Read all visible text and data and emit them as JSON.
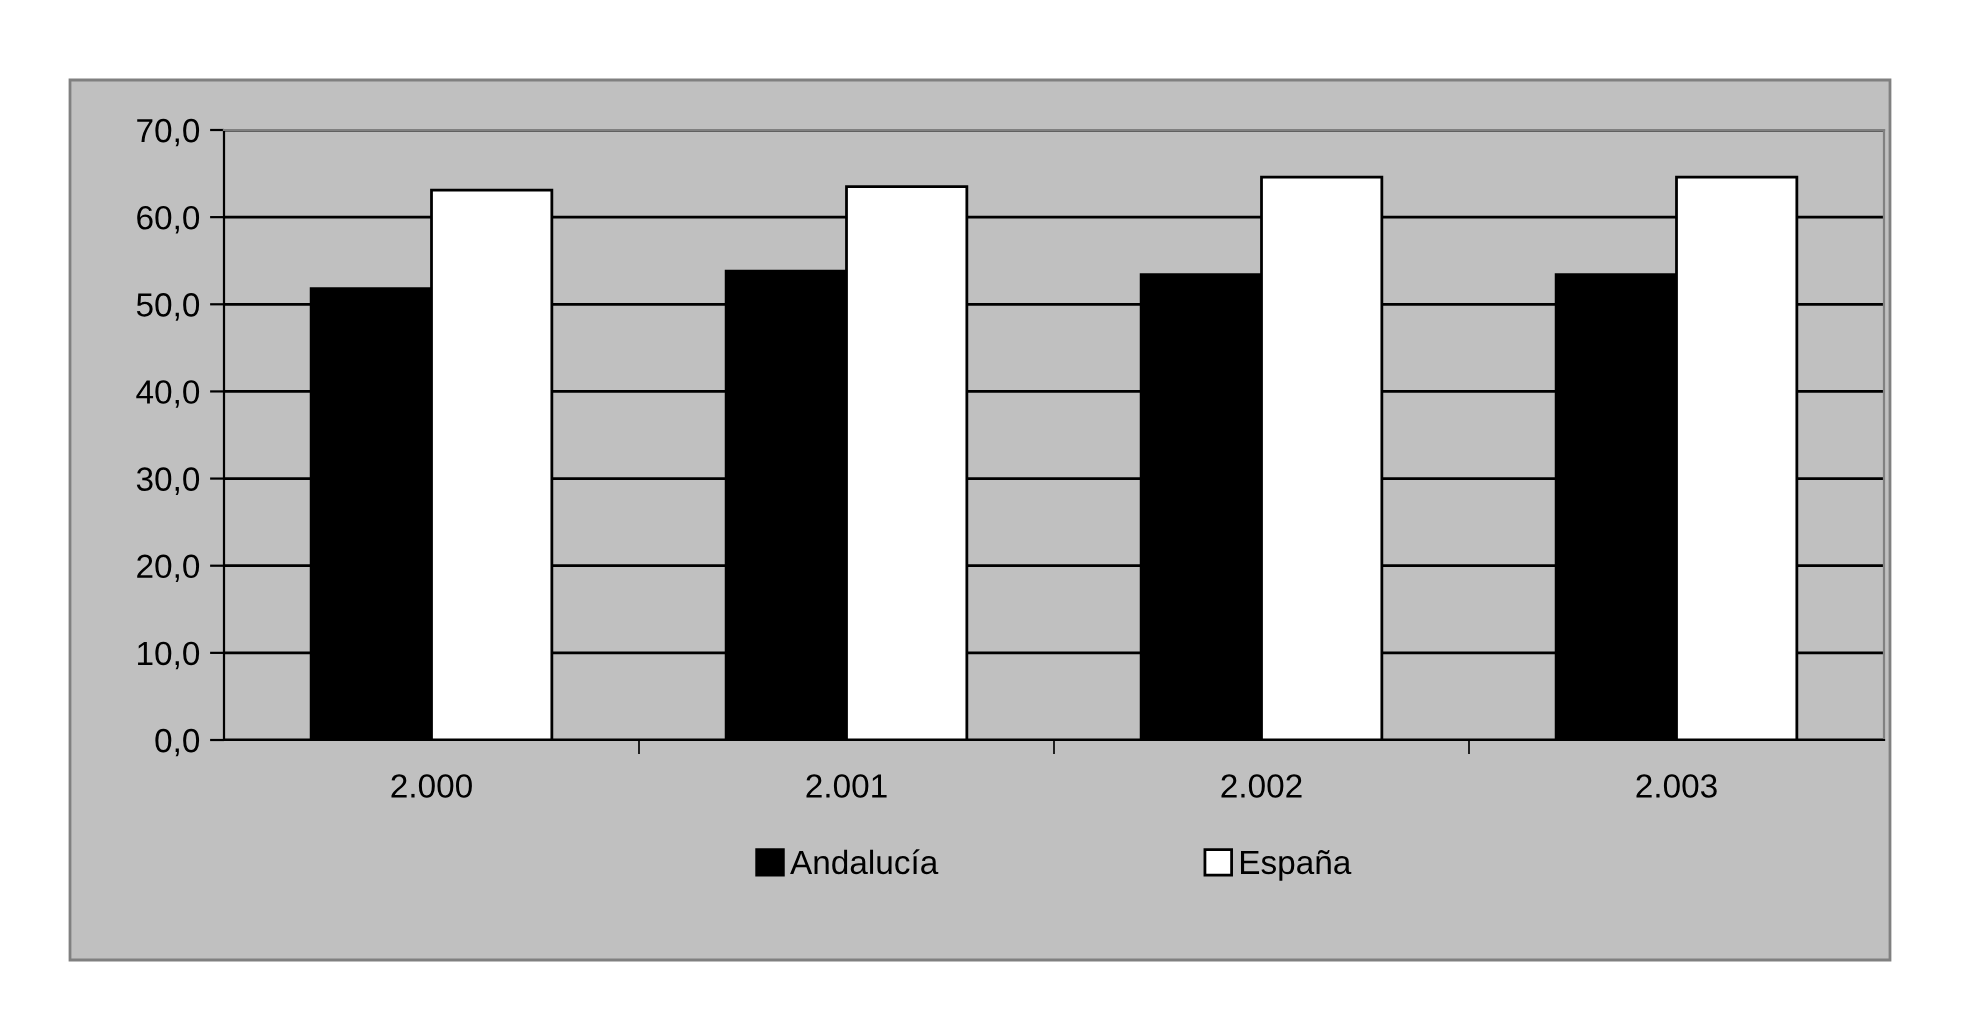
{
  "chart_data": {
    "type": "bar",
    "categories": [
      "2.000",
      "2.001",
      "2.002",
      "2.003"
    ],
    "series": [
      {
        "name": "Andalucía",
        "color": "#000000",
        "values": [
          51.8,
          53.8,
          53.4,
          53.4
        ]
      },
      {
        "name": "España",
        "color": "#ffffff",
        "values": [
          63.1,
          63.5,
          64.6,
          64.6
        ]
      }
    ],
    "ylim": [
      0,
      70
    ],
    "yticks": [
      {
        "value": 0,
        "label": "0,0"
      },
      {
        "value": 10,
        "label": "10,0"
      },
      {
        "value": 20,
        "label": "20,0"
      },
      {
        "value": 30,
        "label": "30,0"
      },
      {
        "value": 40,
        "label": "40,0"
      },
      {
        "value": 50,
        "label": "50,0"
      },
      {
        "value": 60,
        "label": "60,0"
      },
      {
        "value": 70,
        "label": "70,0"
      }
    ],
    "grid": "y",
    "legend": "bottom"
  }
}
